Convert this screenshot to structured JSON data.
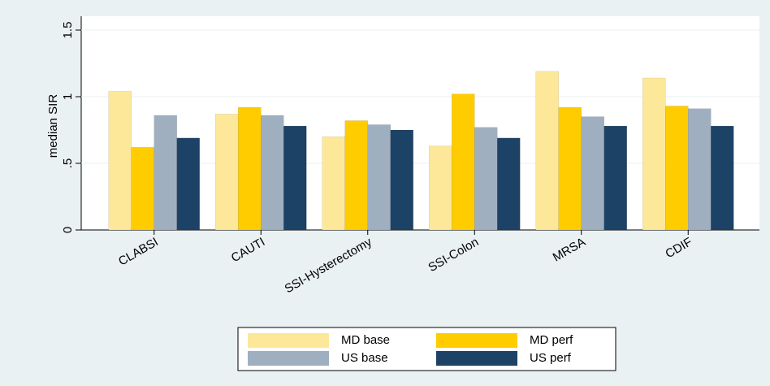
{
  "chart_data": {
    "type": "bar",
    "y_label": "median SIR",
    "categories": [
      "CLABSI",
      "CAUTI",
      "SSI-Hysterectomy",
      "SSI-Colon",
      "MRSA",
      "CDIF"
    ],
    "series": [
      {
        "name": "MD base",
        "color": "#fde89a",
        "values": [
          1.04,
          0.87,
          0.7,
          0.63,
          1.19,
          1.14
        ]
      },
      {
        "name": "MD perf",
        "color": "#ffcc00",
        "values": [
          0.62,
          0.92,
          0.82,
          1.02,
          0.92,
          0.93
        ]
      },
      {
        "name": "US base",
        "color": "#a0afc0",
        "values": [
          0.86,
          0.86,
          0.79,
          0.77,
          0.85,
          0.91
        ]
      },
      {
        "name": "US perf",
        "color": "#1c4266",
        "values": [
          0.69,
          0.78,
          0.75,
          0.69,
          0.78,
          0.78
        ]
      }
    ],
    "ylim": [
      0,
      1.5
    ],
    "yticks": [
      0,
      {
        "value": 0.5,
        "label": ".5"
      },
      1,
      1.5
    ],
    "grid": true
  }
}
